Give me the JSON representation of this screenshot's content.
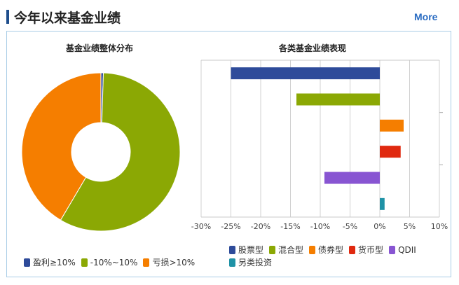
{
  "header": {
    "title": "今年以来基金业绩",
    "more_label": "More"
  },
  "colors": {
    "accent": "#1f4e8c",
    "gain": "#2e4b9a",
    "neutral": "#8ba804",
    "loss": "#f57e00",
    "stock": "#2e4b9a",
    "hybrid": "#8ba804",
    "bond": "#f57e00",
    "money": "#e0290f",
    "qdii": "#8855d2",
    "alt": "#1f92a6"
  },
  "chart_data": [
    {
      "type": "pie",
      "title": "基金业绩整体分布",
      "donut": true,
      "categories": [
        "盈利≥10%",
        "-10%~10%",
        "亏损>10%"
      ],
      "values": [
        0.5,
        58,
        41.5
      ],
      "legend": "bottom"
    },
    {
      "type": "bar",
      "orientation": "horizontal",
      "title": "各类基金业绩表现",
      "categories": [
        "股票型",
        "混合型",
        "债券型",
        "货币型",
        "QDII",
        "另类投资"
      ],
      "values": [
        -25,
        -14,
        4,
        3.5,
        -9.3,
        0.8
      ],
      "xlim": [
        -30,
        10
      ],
      "xticks": [
        "-30%",
        "-25%",
        "-20%",
        "-15%",
        "-10%",
        "-5%",
        "0%",
        "5%",
        "10%"
      ],
      "grid": true,
      "legend": "bottom"
    }
  ]
}
